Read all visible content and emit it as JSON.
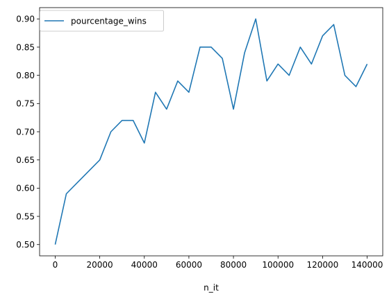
{
  "chart_data": {
    "type": "line",
    "title": "",
    "xlabel": "n_it",
    "ylabel": "",
    "xlim": [
      -7000,
      147000
    ],
    "ylim": [
      0.48,
      0.92
    ],
    "x_ticks": [
      0,
      20000,
      40000,
      60000,
      80000,
      100000,
      120000,
      140000
    ],
    "x_tick_labels": [
      "0",
      "20000",
      "40000",
      "60000",
      "80000",
      "100000",
      "120000",
      "140000"
    ],
    "y_ticks": [
      0.5,
      0.55,
      0.6,
      0.65,
      0.7,
      0.75,
      0.8,
      0.85,
      0.9
    ],
    "y_tick_labels": [
      "0.50",
      "0.55",
      "0.60",
      "0.65",
      "0.70",
      "0.75",
      "0.80",
      "0.85",
      "0.90"
    ],
    "grid": false,
    "legend_position": "upper-left",
    "series": [
      {
        "name": "pourcentage_wins",
        "color": "#1f77b4",
        "x": [
          0,
          5000,
          10000,
          15000,
          20000,
          25000,
          30000,
          35000,
          40000,
          45000,
          50000,
          55000,
          60000,
          65000,
          70000,
          75000,
          80000,
          85000,
          90000,
          95000,
          100000,
          105000,
          110000,
          115000,
          120000,
          125000,
          130000,
          135000,
          140000
        ],
        "y": [
          0.5,
          0.59,
          0.61,
          0.63,
          0.65,
          0.7,
          0.72,
          0.72,
          0.68,
          0.77,
          0.74,
          0.79,
          0.77,
          0.85,
          0.85,
          0.83,
          0.74,
          0.84,
          0.9,
          0.79,
          0.82,
          0.8,
          0.85,
          0.82,
          0.87,
          0.89,
          0.8,
          0.78,
          0.82
        ]
      }
    ]
  }
}
